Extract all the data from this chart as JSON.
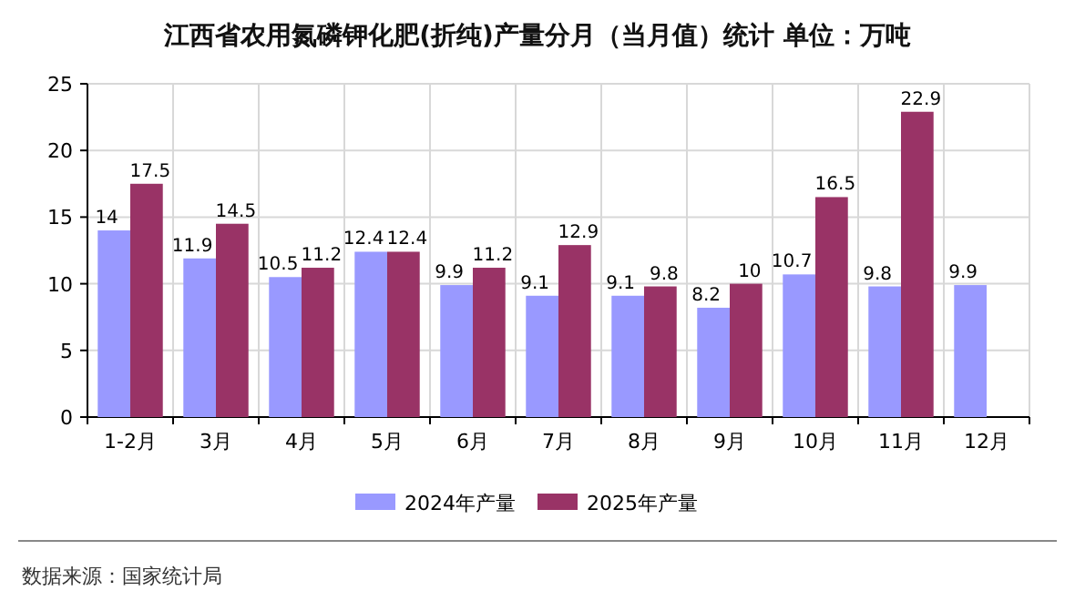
{
  "chart_data": {
    "type": "bar",
    "title": "江西省农用氮磷钾化肥(折纯)产量分月（当月值）统计 单位：万吨",
    "categories": [
      "1-2月",
      "3月",
      "4月",
      "5月",
      "6月",
      "7月",
      "8月",
      "9月",
      "10月",
      "11月",
      "12月"
    ],
    "series": [
      {
        "name": "2024年产量",
        "color": "#9999ff",
        "values": [
          14,
          11.9,
          10.5,
          12.4,
          9.9,
          9.1,
          9.1,
          8.2,
          10.7,
          9.8,
          9.9
        ]
      },
      {
        "name": "2025年产量",
        "color": "#993366",
        "values": [
          17.5,
          14.5,
          11.2,
          12.4,
          11.2,
          12.9,
          9.8,
          10,
          16.5,
          22.9,
          null
        ]
      }
    ],
    "ylim": [
      0,
      25
    ],
    "yticks": [
      0,
      5,
      10,
      15,
      20,
      25
    ],
    "grid": true,
    "legend": "bottom",
    "data_labels": true,
    "annotations": [
      "数据来源：国家统计局"
    ]
  }
}
